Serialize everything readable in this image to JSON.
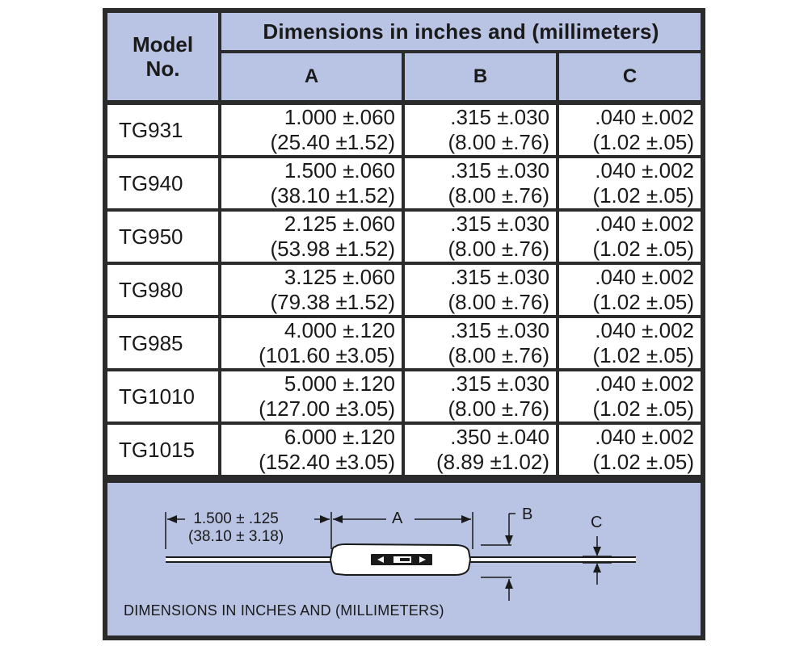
{
  "table": {
    "model_header": "Model No.",
    "dimensions_header": "Dimensions in inches and (millimeters)",
    "columns": [
      "A",
      "B",
      "C"
    ],
    "rows": [
      {
        "model": "TG931",
        "a_in": "1.000 ±.060",
        "a_mm": "(25.40 ±1.52)",
        "b_in": ".315 ±.030",
        "b_mm": "(8.00 ±.76)",
        "c_in": ".040 ±.002",
        "c_mm": "(1.02 ±.05)"
      },
      {
        "model": "TG940",
        "a_in": "1.500 ±.060",
        "a_mm": "(38.10 ±1.52)",
        "b_in": ".315 ±.030",
        "b_mm": "(8.00 ±.76)",
        "c_in": ".040 ±.002",
        "c_mm": "(1.02 ±.05)"
      },
      {
        "model": "TG950",
        "a_in": "2.125 ±.060",
        "a_mm": "(53.98 ±1.52)",
        "b_in": ".315 ±.030",
        "b_mm": "(8.00 ±.76)",
        "c_in": ".040 ±.002",
        "c_mm": "(1.02 ±.05)"
      },
      {
        "model": "TG980",
        "a_in": "3.125 ±.060",
        "a_mm": "(79.38 ±1.52)",
        "b_in": ".315 ±.030",
        "b_mm": "(8.00 ±.76)",
        "c_in": ".040 ±.002",
        "c_mm": "(1.02 ±.05)"
      },
      {
        "model": "TG985",
        "a_in": "4.000 ±.120",
        "a_mm": "(101.60 ±3.05)",
        "b_in": ".315 ±.030",
        "b_mm": "(8.00 ±.76)",
        "c_in": ".040 ±.002",
        "c_mm": "(1.02 ±.05)"
      },
      {
        "model": "TG1010",
        "a_in": "5.000 ±.120",
        "a_mm": "(127.00 ±3.05)",
        "b_in": ".315 ±.030",
        "b_mm": "(8.00 ±.76)",
        "c_in": ".040 ±.002",
        "c_mm": "(1.02 ±.05)"
      },
      {
        "model": "TG1015",
        "a_in": "6.000 ±.120",
        "a_mm": "(152.40 ±3.05)",
        "b_in": ".350 ±.040",
        "b_mm": "(8.89 ±1.02)",
        "c_in": ".040 ±.002",
        "c_mm": "(1.02 ±.05)"
      }
    ]
  },
  "diagram": {
    "lead_length_in": "1.500 ± .125",
    "lead_length_mm": "(38.10 ± 3.18)",
    "label_a": "A",
    "label_b": "B",
    "label_c": "C",
    "caption": "DIMENSIONS IN INCHES AND (MILLIMETERS)"
  },
  "colors": {
    "header_fill": "#b9c3e3",
    "grid_lines": "#2b2b2b",
    "body_fill": "#ffffff"
  }
}
